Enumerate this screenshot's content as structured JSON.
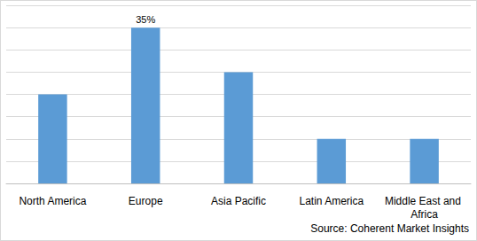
{
  "chart_data": {
    "type": "bar",
    "categories": [
      "North America",
      "Europe",
      "Asia Pacific",
      "Latin America",
      "Middle East and Africa"
    ],
    "values": [
      20,
      35,
      25,
      10,
      10
    ],
    "value_labels": [
      null,
      "35%",
      null,
      null,
      null
    ],
    "data_labels": true,
    "color": "#5b9bd5",
    "ylim": [
      0,
      40
    ],
    "yticks": [
      0,
      5,
      10,
      15,
      20,
      25,
      30,
      35,
      40
    ],
    "grid": true,
    "tick_labels": "x",
    "annotation": "Source: Coherent Market Insights"
  }
}
